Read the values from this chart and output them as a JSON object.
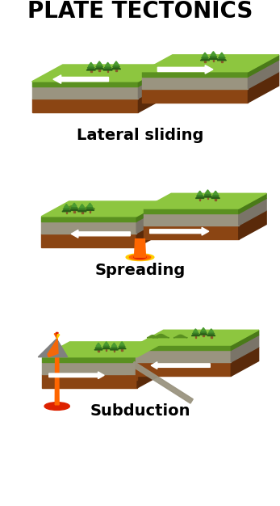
{
  "title": "PLATE TECTONICS",
  "labels": [
    "Lateral sliding",
    "Spreading",
    "Subduction"
  ],
  "title_fontsize": 20,
  "label_fontsize": 14,
  "bg_color": "#ffffff",
  "colors": {
    "grass_top_light": "#8dc63f",
    "grass_top_dark": "#6aaa2a",
    "grass_front": "#5a9020",
    "grass_right": "#4a7a18",
    "rock_top": "#b0aa90",
    "rock_front": "#9a9480",
    "rock_right": "#7a7468",
    "earth_top": "#a06030",
    "earth_front": "#8B4513",
    "earth_front2": "#7a3a10",
    "earth_right": "#5a2a0a",
    "magma_orange": "#ff6600",
    "magma_red": "#dd2200",
    "magma_yellow": "#ffcc00",
    "arrow_white": "#ffffff",
    "tree_dark": "#2a6018",
    "tree_mid": "#3a8025",
    "tree_light": "#4a9a30",
    "tree_trunk": "#8B5a2a",
    "volcano_gray": "#808080",
    "volcano_dark": "#606060",
    "lava_bright": "#ff4400",
    "hill_green": "#5a9020"
  },
  "figsize": [
    3.47,
    6.26
  ],
  "dpi": 100
}
